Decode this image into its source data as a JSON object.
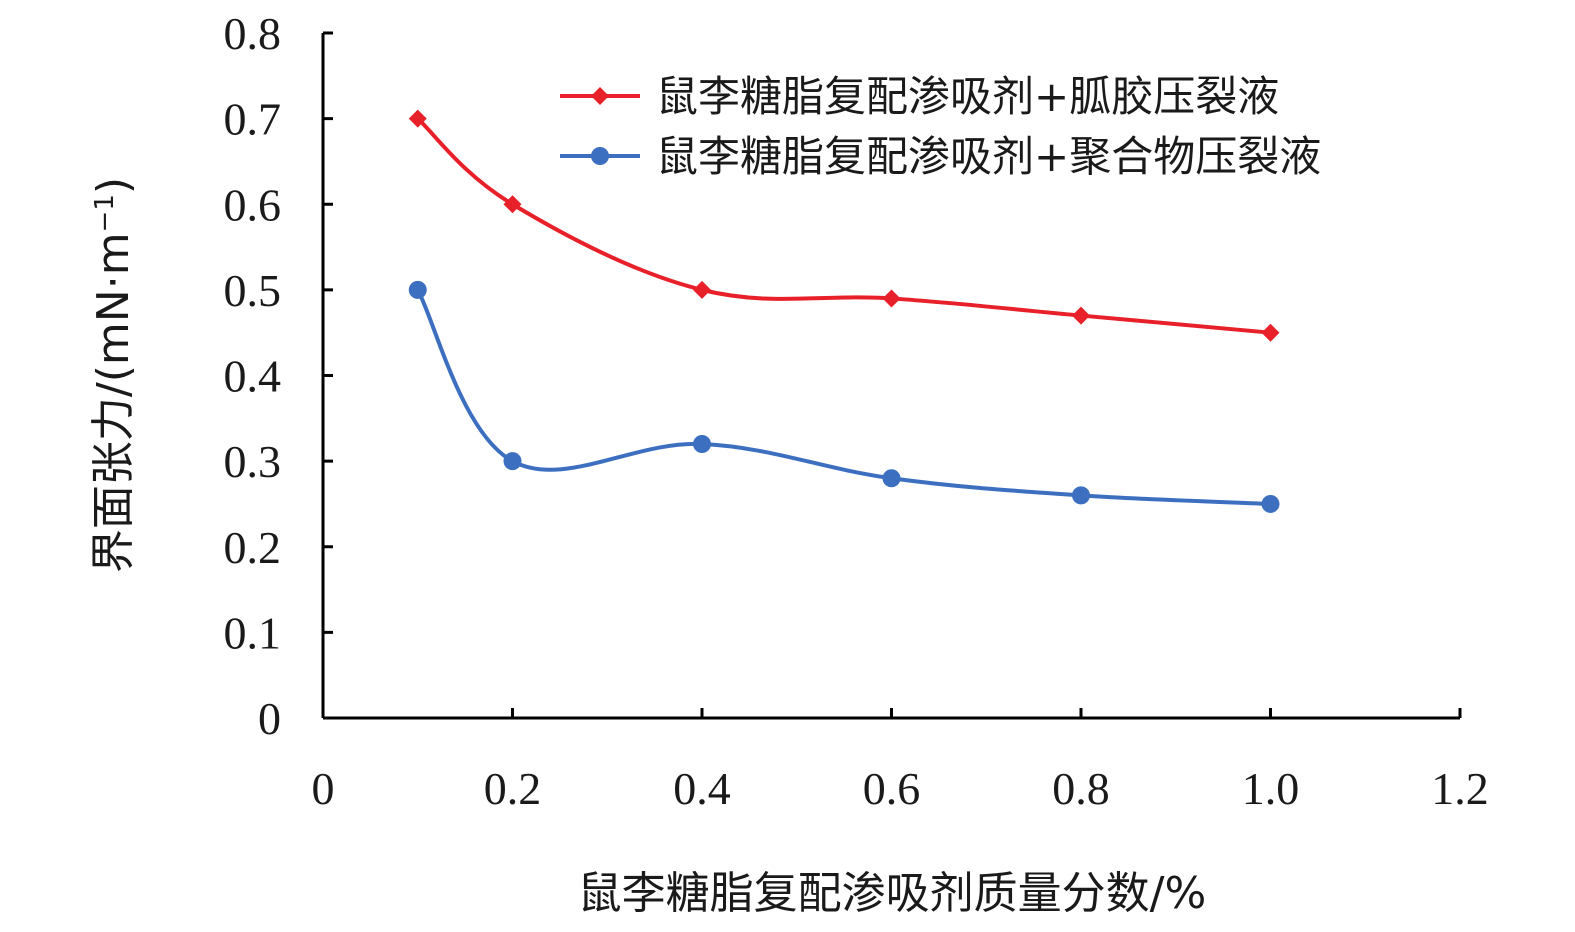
{
  "chart_data": {
    "type": "line",
    "title": "",
    "xlabel": "鼠李糖脂复配渗吸剂质量分数/%",
    "ylabel": "界面张力/(mN·m",
    "ylabel_superscript": "−1",
    "ylabel_close": ")",
    "xlim": [
      0,
      1.2
    ],
    "ylim": [
      0,
      0.8
    ],
    "x_ticks": [
      "0",
      "0.2",
      "0.4",
      "0.6",
      "0.8",
      "1.0",
      "1.2"
    ],
    "y_ticks": [
      "0",
      "0.1",
      "0.2",
      "0.3",
      "0.4",
      "0.5",
      "0.6",
      "0.7",
      "0.8"
    ],
    "grid": false,
    "legend_position": "top-right",
    "smooth": true,
    "series": [
      {
        "name": "鼠李糖脂复配渗吸剂+胍胶压裂液",
        "color": "#e8202a",
        "marker": "diamond",
        "x": [
          0.1,
          0.2,
          0.4,
          0.6,
          0.8,
          1.0
        ],
        "y": [
          0.7,
          0.6,
          0.5,
          0.49,
          0.47,
          0.45
        ]
      },
      {
        "name": "鼠李糖脂复配渗吸剂+聚合物压裂液",
        "color": "#3d6fc0",
        "marker": "circle",
        "x": [
          0.1,
          0.2,
          0.4,
          0.6,
          0.8,
          1.0
        ],
        "y": [
          0.5,
          0.3,
          0.32,
          0.28,
          0.26,
          0.25
        ]
      }
    ]
  }
}
